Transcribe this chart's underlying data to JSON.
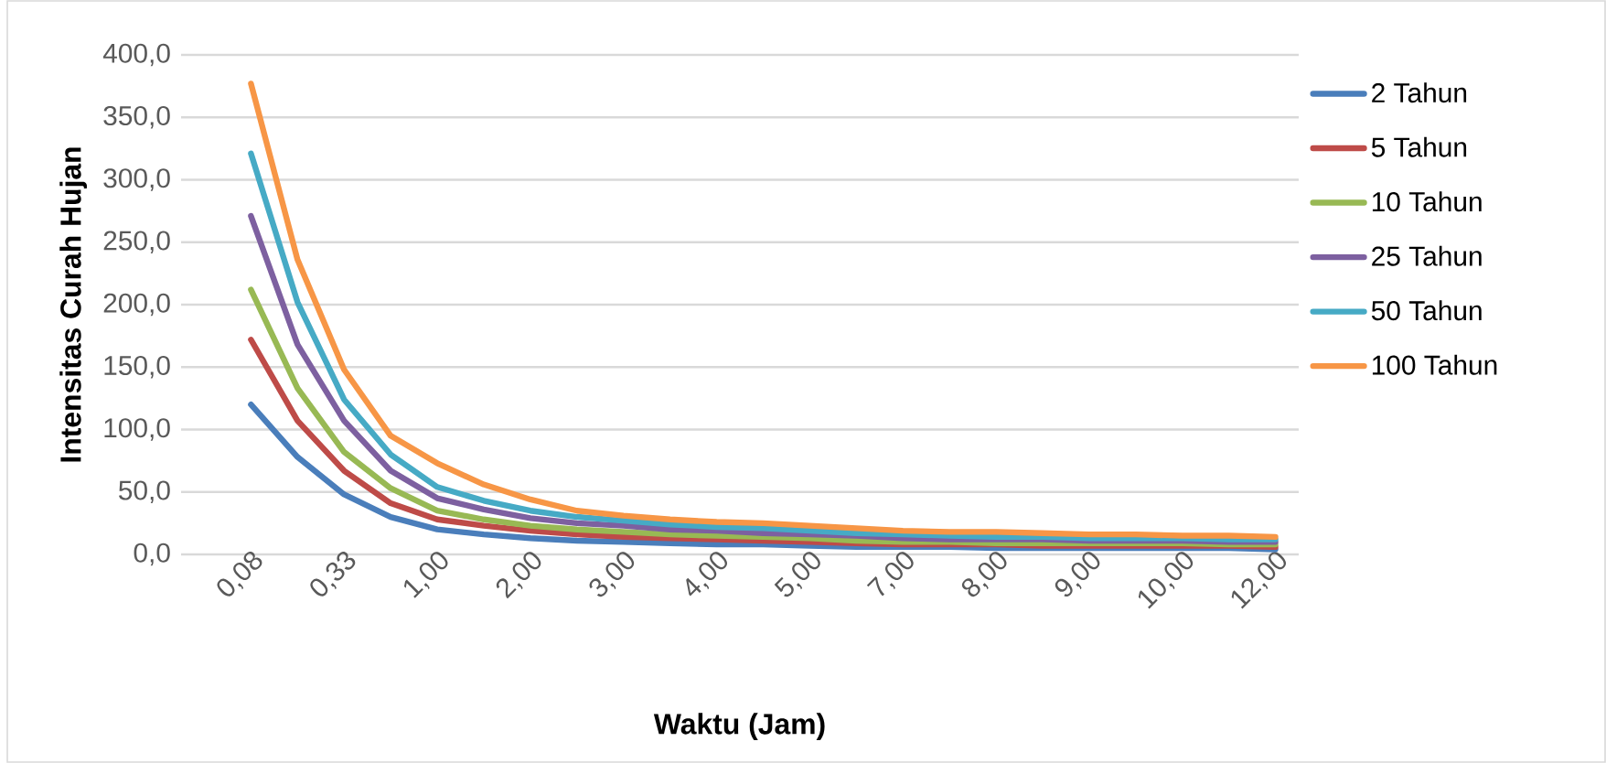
{
  "chart_data": {
    "type": "line",
    "xlabel": "Waktu (Jam)",
    "ylabel": "Intensitas Curah Hujan",
    "categories": [
      "0,08",
      null,
      "0,33",
      null,
      "1,00",
      null,
      "2,00",
      null,
      "3,00",
      null,
      "4,00",
      null,
      "5,00",
      null,
      "7,00",
      null,
      "8,00",
      null,
      "9,00",
      null,
      "10,00",
      null,
      "12,00"
    ],
    "ylim": [
      0,
      400
    ],
    "yticks": [
      {
        "value": 0,
        "label": "0,0"
      },
      {
        "value": 50,
        "label": "50,0"
      },
      {
        "value": 100,
        "label": "100,0"
      },
      {
        "value": 150,
        "label": "150,0"
      },
      {
        "value": 200,
        "label": "200,0"
      },
      {
        "value": 250,
        "label": "250,0"
      },
      {
        "value": 300,
        "label": "300,0"
      },
      {
        "value": 350,
        "label": "350,0"
      },
      {
        "value": 400,
        "label": "400,0"
      }
    ],
    "grid": "y",
    "legend": "right",
    "marker": "none",
    "line_style": "solid",
    "series": [
      {
        "name": "2 Tahun",
        "color": "#4a7ebb",
        "values": [
          120,
          78,
          48,
          30,
          20,
          16,
          13,
          11,
          10,
          9,
          8,
          8,
          7,
          6,
          6,
          6,
          5,
          5,
          5,
          5,
          5,
          5,
          4
        ]
      },
      {
        "name": "5 Tahun",
        "color": "#be4b48",
        "values": [
          172,
          107,
          67,
          41,
          28,
          23,
          19,
          16,
          14,
          13,
          12,
          11,
          10,
          9,
          8,
          8,
          8,
          7,
          7,
          7,
          7,
          7,
          6
        ]
      },
      {
        "name": "10 Tahun",
        "color": "#98b954",
        "values": [
          212,
          133,
          82,
          53,
          35,
          28,
          23,
          20,
          18,
          16,
          15,
          14,
          13,
          11,
          10,
          10,
          9,
          9,
          9,
          9,
          9,
          8,
          8
        ]
      },
      {
        "name": "25 Tahun",
        "color": "#7d60a0",
        "values": [
          271,
          168,
          107,
          67,
          45,
          36,
          29,
          25,
          23,
          20,
          19,
          17,
          16,
          15,
          13,
          12,
          12,
          12,
          11,
          11,
          11,
          10,
          10
        ]
      },
      {
        "name": "50 Tahun",
        "color": "#46aac5",
        "values": [
          321,
          202,
          124,
          80,
          54,
          43,
          35,
          30,
          27,
          24,
          22,
          21,
          19,
          17,
          16,
          15,
          14,
          14,
          13,
          13,
          13,
          12,
          12
        ]
      },
      {
        "name": "100 Tahun",
        "color": "#f79646",
        "values": [
          377,
          236,
          148,
          95,
          73,
          56,
          44,
          35,
          31,
          28,
          26,
          25,
          23,
          21,
          19,
          18,
          18,
          17,
          16,
          16,
          15,
          15,
          14
        ]
      }
    ]
  }
}
